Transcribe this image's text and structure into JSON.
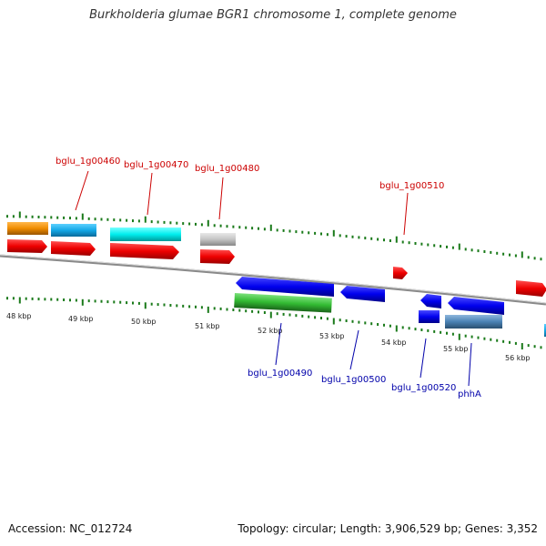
{
  "title": "Burkholderia glumae BGR1 chromosome 1, complete genome",
  "footer": {
    "accession": "Accession: NC_012724",
    "stats": "Topology: circular; Length: 3,906,529 bp; Genes: 3,352"
  },
  "colors": {
    "backbone": "#8a8a8a",
    "tick": "#1a7a1a",
    "top_label": "#cc0000",
    "bottom_label": "#0000aa"
  },
  "scale_labels": [
    "48 kbp",
    "49 kbp",
    "50 kbp",
    "51 kbp",
    "52 kbp",
    "53 kbp",
    "54 kbp",
    "55 kbp",
    "56 kbp"
  ],
  "top_labels": [
    "bglu_1g00460",
    "bglu_1g00470",
    "bglu_1g00480",
    "bglu_1g00510"
  ],
  "bottom_labels": [
    "bglu_1g00490",
    "bglu_1g00500",
    "bglu_1g00520",
    "phhA"
  ]
}
